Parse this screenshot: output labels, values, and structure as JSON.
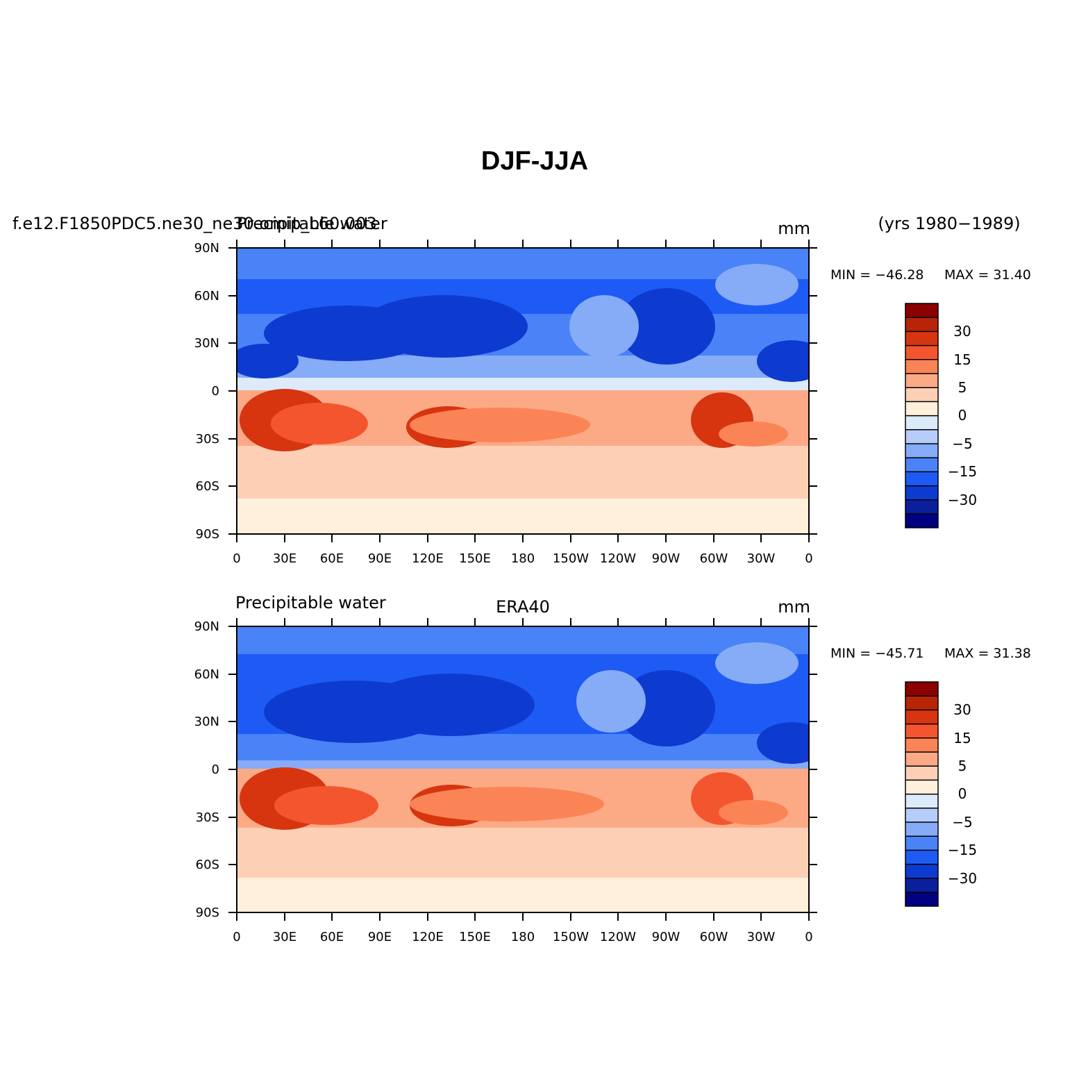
{
  "main_title": "DJF-JJA",
  "units": "mm",
  "years": "(yrs 1980−1989)",
  "lon_ticks": [
    "0",
    "30E",
    "60E",
    "90E",
    "120E",
    "150E",
    "180",
    "150W",
    "120W",
    "90W",
    "60W",
    "30W",
    "0"
  ],
  "lat_ticks": [
    "90N",
    "60N",
    "30N",
    "0",
    "30S",
    "60S",
    "90S"
  ],
  "colorbar": {
    "colors": [
      "#000080",
      "#0a1f9c",
      "#0d3bd0",
      "#1e5bf5",
      "#4a82f7",
      "#86abf7",
      "#b5cdf8",
      "#dceafa",
      "#fff0dc",
      "#fdd0b6",
      "#fcaa86",
      "#fb8456",
      "#f3562e",
      "#d63510",
      "#b82406",
      "#8b0000"
    ],
    "labels": [
      "−30",
      "−15",
      "−5",
      "0",
      "5",
      "15",
      "30"
    ]
  },
  "panels": [
    {
      "left_label": "f.e12.F1850PDC5.ne30_ne30.omip_L60.003",
      "left_label2": "Precipitable water",
      "center_label": "",
      "min_label": "MIN = −46.28",
      "max_label": "MAX =  31.40"
    },
    {
      "left_label": "Precipitable water",
      "left_label2": "",
      "center_label": "ERA40",
      "min_label": "MIN = −45.71",
      "max_label": "MAX =  31.38"
    }
  ]
}
